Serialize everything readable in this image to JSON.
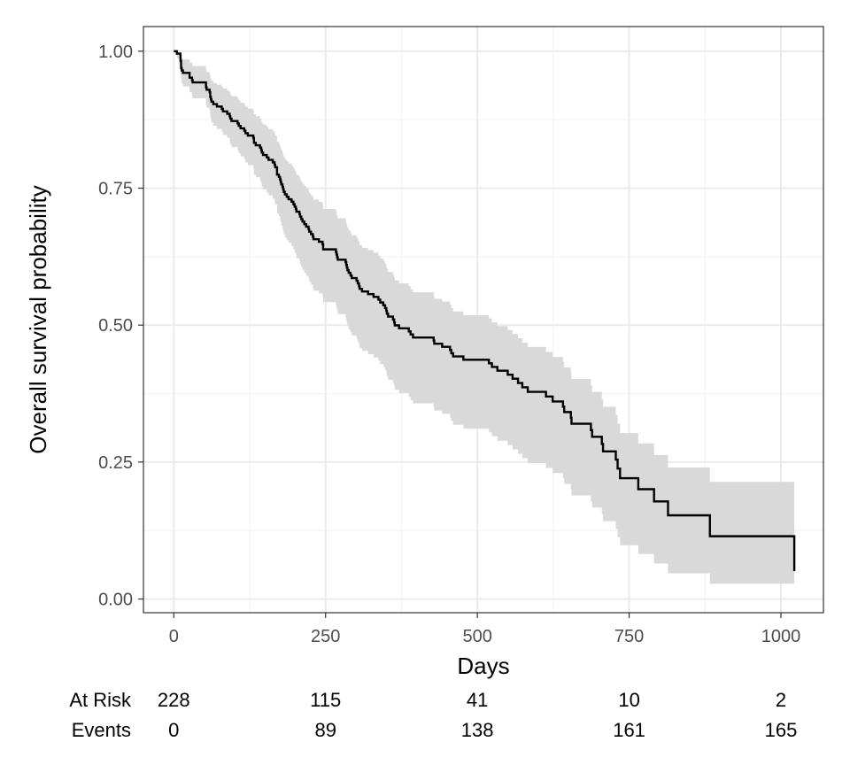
{
  "chart_data": {
    "type": "line",
    "xlabel": "Days",
    "ylabel": "Overall survival probability",
    "xlim": [
      -50,
      1070
    ],
    "ylim": [
      -0.025,
      1.045
    ],
    "x_ticks": [
      0,
      250,
      500,
      750,
      1000
    ],
    "y_ticks": [
      0.0,
      0.25,
      0.5,
      0.75,
      1.0
    ],
    "x_tick_labels": [
      "0",
      "250",
      "500",
      "750",
      "1000"
    ],
    "y_tick_labels": [
      "0.00",
      "0.25",
      "0.50",
      "0.75",
      "1.00"
    ],
    "grid": true,
    "legend": "none",
    "colors": {
      "line": "#000000",
      "ribbon": "#d9d9d9",
      "grid_major": "#ebebeb",
      "grid_minor": "#f3f3f3",
      "border": "#333333"
    },
    "series": [
      {
        "x": [
          0,
          5,
          11,
          12,
          13,
          15,
          26,
          30,
          31,
          53,
          54,
          59,
          60,
          61,
          62,
          65,
          71,
          79,
          81,
          88,
          92,
          93,
          95,
          105,
          107,
          110,
          116,
          118,
          122,
          131,
          132,
          135,
          142,
          144,
          145,
          147,
          153,
          156,
          163,
          166,
          167,
          170,
          173,
          175,
          176,
          177,
          179,
          180,
          181,
          183,
          186,
          189,
          194,
          197,
          199,
          201,
          202,
          207,
          208,
          210,
          212,
          215,
          218,
          222,
          223,
          226,
          229,
          230,
          239,
          245,
          246,
          267,
          268,
          269,
          270,
          283,
          284,
          285,
          286,
          288,
          291,
          293,
          301,
          303,
          305,
          306,
          310,
          320,
          329,
          337,
          340,
          345,
          348,
          350,
          351,
          353,
          361,
          363,
          364,
          371,
          387,
          390,
          394,
          428,
          429,
          442,
          455,
          457,
          460,
          477,
          519,
          524,
          533,
          550,
          558,
          567,
          574,
          583,
          613,
          624,
          641,
          643,
          654,
          655,
          687,
          689,
          705,
          707,
          728,
          731,
          735,
          765,
          791,
          814,
          883,
          1022
        ],
        "y": [
          1.0,
          0.9956,
          0.9825,
          0.9693,
          0.9649,
          0.9605,
          0.9518,
          0.9474,
          0.943,
          0.9342,
          0.9298,
          0.9254,
          0.9167,
          0.9123,
          0.9079,
          0.9035,
          0.8991,
          0.8947,
          0.8902,
          0.8858,
          0.8814,
          0.877,
          0.8726,
          0.8681,
          0.8637,
          0.8593,
          0.8549,
          0.8504,
          0.846,
          0.8416,
          0.8327,
          0.8283,
          0.8239,
          0.8194,
          0.815,
          0.8105,
          0.8061,
          0.8016,
          0.7971,
          0.7927,
          0.7882,
          0.7748,
          0.7703,
          0.7658,
          0.7613,
          0.7568,
          0.7523,
          0.7478,
          0.7432,
          0.7387,
          0.7342,
          0.7297,
          0.7252,
          0.7207,
          0.7162,
          0.7116,
          0.7071,
          0.7025,
          0.698,
          0.6934,
          0.6889,
          0.6843,
          0.6797,
          0.6752,
          0.6706,
          0.666,
          0.6614,
          0.6568,
          0.6522,
          0.6476,
          0.6383,
          0.6336,
          0.6289,
          0.6241,
          0.6194,
          0.6147,
          0.6099,
          0.6051,
          0.6003,
          0.5955,
          0.5907,
          0.5858,
          0.581,
          0.5761,
          0.5712,
          0.5663,
          0.5614,
          0.5565,
          0.5515,
          0.5464,
          0.5413,
          0.5362,
          0.5311,
          0.526,
          0.5208,
          0.5155,
          0.5102,
          0.5049,
          0.4995,
          0.4941,
          0.4886,
          0.483,
          0.4774,
          0.4718,
          0.4661,
          0.4604,
          0.4546,
          0.4487,
          0.4428,
          0.4367,
          0.4303,
          0.4237,
          0.4168,
          0.4095,
          0.4021,
          0.3944,
          0.3865,
          0.3782,
          0.3696,
          0.3606,
          0.3512,
          0.3413,
          0.3309,
          0.3199,
          0.3083,
          0.2961,
          0.2831,
          0.2694,
          0.2545,
          0.2382,
          0.2205,
          0.2005,
          0.1782,
          0.1528,
          0.1146,
          0.0509
        ],
        "lower": [
          1.0,
          0.987,
          0.966,
          0.948,
          0.942,
          0.936,
          0.925,
          0.919,
          0.914,
          0.903,
          0.897,
          0.891,
          0.881,
          0.875,
          0.87,
          0.864,
          0.858,
          0.853,
          0.847,
          0.842,
          0.836,
          0.83,
          0.825,
          0.819,
          0.814,
          0.808,
          0.803,
          0.797,
          0.792,
          0.786,
          0.775,
          0.77,
          0.764,
          0.759,
          0.753,
          0.748,
          0.742,
          0.737,
          0.731,
          0.726,
          0.72,
          0.704,
          0.699,
          0.693,
          0.688,
          0.682,
          0.677,
          0.671,
          0.666,
          0.66,
          0.655,
          0.65,
          0.644,
          0.639,
          0.633,
          0.628,
          0.622,
          0.617,
          0.611,
          0.606,
          0.601,
          0.595,
          0.59,
          0.585,
          0.579,
          0.574,
          0.568,
          0.563,
          0.558,
          0.552,
          0.542,
          0.536,
          0.531,
          0.525,
          0.52,
          0.514,
          0.509,
          0.503,
          0.498,
          0.492,
          0.487,
          0.481,
          0.475,
          0.47,
          0.464,
          0.458,
          0.453,
          0.447,
          0.441,
          0.435,
          0.429,
          0.424,
          0.418,
          0.412,
          0.406,
          0.4,
          0.394,
          0.388,
          0.382,
          0.376,
          0.369,
          0.363,
          0.357,
          0.351,
          0.344,
          0.338,
          0.331,
          0.325,
          0.318,
          0.311,
          0.304,
          0.297,
          0.289,
          0.281,
          0.273,
          0.265,
          0.257,
          0.248,
          0.239,
          0.23,
          0.22,
          0.21,
          0.2,
          0.189,
          0.178,
          0.167,
          0.155,
          0.142,
          0.128,
          0.113,
          0.098,
          0.082,
          0.065,
          0.047,
          0.028,
          0.002
        ],
        "upper": [
          1.0,
          1.0,
          0.999,
          0.99,
          0.988,
          0.985,
          0.979,
          0.976,
          0.973,
          0.966,
          0.962,
          0.959,
          0.953,
          0.949,
          0.946,
          0.942,
          0.939,
          0.935,
          0.932,
          0.928,
          0.925,
          0.921,
          0.918,
          0.914,
          0.91,
          0.906,
          0.903,
          0.899,
          0.895,
          0.892,
          0.885,
          0.881,
          0.877,
          0.873,
          0.869,
          0.866,
          0.862,
          0.858,
          0.854,
          0.85,
          0.846,
          0.835,
          0.831,
          0.827,
          0.823,
          0.819,
          0.815,
          0.811,
          0.807,
          0.803,
          0.799,
          0.795,
          0.791,
          0.787,
          0.782,
          0.778,
          0.774,
          0.77,
          0.766,
          0.762,
          0.758,
          0.754,
          0.75,
          0.745,
          0.741,
          0.737,
          0.733,
          0.729,
          0.725,
          0.72,
          0.712,
          0.708,
          0.703,
          0.699,
          0.695,
          0.69,
          0.686,
          0.682,
          0.677,
          0.673,
          0.668,
          0.664,
          0.66,
          0.655,
          0.651,
          0.646,
          0.641,
          0.637,
          0.632,
          0.627,
          0.622,
          0.617,
          0.612,
          0.607,
          0.602,
          0.597,
          0.592,
          0.587,
          0.582,
          0.576,
          0.571,
          0.565,
          0.56,
          0.554,
          0.548,
          0.543,
          0.537,
          0.531,
          0.525,
          0.518,
          0.512,
          0.505,
          0.498,
          0.491,
          0.484,
          0.476,
          0.468,
          0.46,
          0.451,
          0.442,
          0.433,
          0.423,
          0.413,
          0.402,
          0.39,
          0.378,
          0.365,
          0.351,
          0.336,
          0.32,
          0.303,
          0.284,
          0.263,
          0.24,
          0.214,
          0.184
        ]
      }
    ],
    "risk_table": {
      "rows": [
        {
          "label": "At Risk",
          "values": [
            "228",
            "115",
            "41",
            "10",
            "2"
          ]
        },
        {
          "label": "Events",
          "values": [
            "0",
            "89",
            "138",
            "161",
            "165"
          ]
        }
      ],
      "x": [
        0,
        250,
        500,
        750,
        1000
      ]
    }
  }
}
